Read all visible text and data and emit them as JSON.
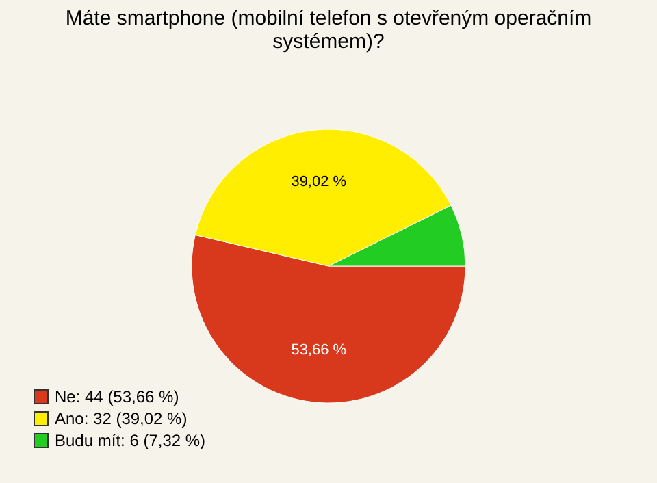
{
  "chart_data": {
    "type": "pie",
    "title": "Máte smartphone (mobilní telefon s otevřeným operačním systémem)?",
    "categories": [
      "Ne: 44 (53,66 %)",
      "Ano: 32 (39,02 %)",
      "Budu mít: 6 (7,32 %)"
    ],
    "values": [
      53.66,
      39.02,
      7.32
    ],
    "colors": [
      "#d8381c",
      "#ffee00",
      "#22cc22"
    ],
    "value_labels": [
      "53,66 %",
      "39,02 %",
      null
    ],
    "legend": "bottom left"
  }
}
